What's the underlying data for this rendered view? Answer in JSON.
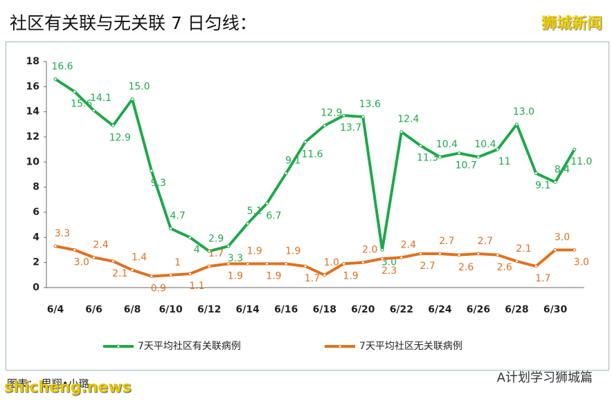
{
  "header": {
    "title": "社区有关联与无关联 7 日匀线：",
    "watermark": "狮城新闻"
  },
  "chart_data": {
    "type": "line",
    "categories": [
      "6/4",
      null,
      "6/6",
      null,
      "6/8",
      null,
      "6/10",
      null,
      "6/12",
      null,
      "6/14",
      null,
      "6/16",
      null,
      "6/18",
      null,
      "6/20",
      null,
      "6/22",
      null,
      "6/24",
      null,
      "6/26",
      null,
      "6/28",
      null,
      "6/30",
      null
    ],
    "series": [
      {
        "name": "7天平均社区有关联病例",
        "color": "#1ea84a",
        "values": [
          16.6,
          15.6,
          14.1,
          12.9,
          15,
          9.3,
          4.7,
          4,
          2.9,
          3.3,
          5.1,
          6.7,
          9.1,
          11.6,
          12.9,
          13.7,
          13.6,
          3,
          12.4,
          11.3,
          10.4,
          10.7,
          10.4,
          11,
          13,
          9.1,
          8.4,
          11
        ],
        "value_labels": [
          "16.6",
          "15.6",
          "14.1",
          "12.9",
          "15.0",
          "9.3",
          "4.7",
          "4",
          "2.9",
          "3.3",
          "5.1",
          "6.7",
          "9.1",
          "11.6",
          "12.9",
          "13.7",
          "13.6",
          "3.0",
          "12.4",
          "11.3",
          "10.4",
          "10.7",
          "10.4",
          "11",
          "13.0",
          "9.1",
          "8.4",
          "11.0"
        ]
      },
      {
        "name": "7天平均社区无关联病例",
        "color": "#e0701e",
        "values": [
          3.3,
          3,
          2.4,
          2.1,
          1.4,
          0.9,
          1,
          1.1,
          1.7,
          1.9,
          1.9,
          1.9,
          1.9,
          1.7,
          1,
          1.9,
          2,
          2.3,
          2.4,
          2.7,
          2.7,
          2.6,
          2.7,
          2.6,
          2.1,
          1.7,
          3,
          3
        ],
        "value_labels": [
          "3.3",
          "3.0",
          "2.4",
          "2.1",
          "1.4",
          "0.9",
          "1",
          "1.1",
          "1.7",
          "1.9",
          "1.9",
          "1.9",
          "1.9",
          "1.7",
          "1.0",
          "1.9",
          "2.0",
          "2.3",
          "2.4",
          "2.7",
          "2.7",
          "2.6",
          "2.7",
          "2.6",
          "2.1",
          "1.7",
          "3.0",
          "3.0"
        ]
      }
    ],
    "ylim": [
      0,
      18
    ],
    "yticks": [
      0,
      2,
      4,
      6,
      8,
      10,
      12,
      14,
      16,
      18
    ],
    "legend": "bottom"
  },
  "footer": {
    "caption": "图表： 思翔•小璐",
    "account": "A计划学习狮城篇",
    "site": "shicheng.news"
  }
}
